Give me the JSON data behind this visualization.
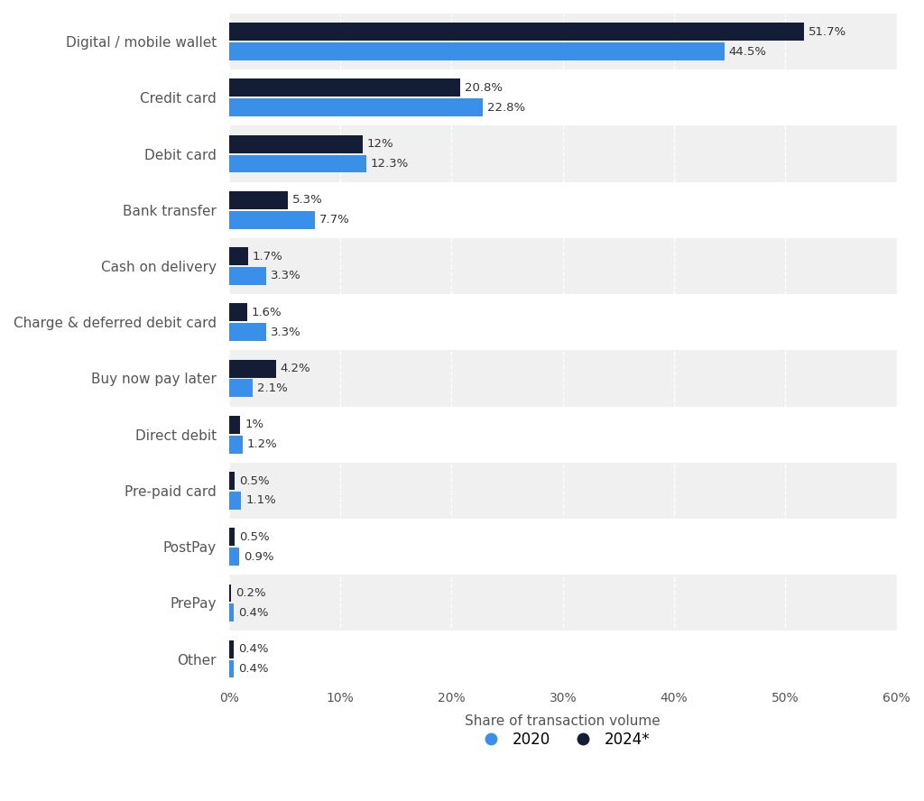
{
  "categories": [
    "Digital / mobile wallet",
    "Credit card",
    "Debit card",
    "Bank transfer",
    "Cash on delivery",
    "Charge & deferred debit card",
    "Buy now pay later",
    "Direct debit",
    "Pre-paid card",
    "PostPay",
    "PrePay",
    "Other"
  ],
  "values_2020": [
    44.5,
    22.8,
    12.3,
    7.7,
    3.3,
    3.3,
    2.1,
    1.2,
    1.1,
    0.9,
    0.4,
    0.4
  ],
  "values_2024": [
    51.7,
    20.8,
    12.0,
    5.3,
    1.7,
    1.6,
    4.2,
    1.0,
    0.5,
    0.5,
    0.2,
    0.4
  ],
  "labels_2020": [
    "44.5%",
    "22.8%",
    "12.3%",
    "7.7%",
    "3.3%",
    "3.3%",
    "2.1%",
    "1.2%",
    "1.1%",
    "0.9%",
    "0.4%",
    "0.4%"
  ],
  "labels_2024": [
    "51.7%",
    "20.8%",
    "12%",
    "5.3%",
    "1.7%",
    "1.6%",
    "4.2%",
    "1%",
    "0.5%",
    "0.5%",
    "0.2%",
    "0.4%"
  ],
  "color_2020": "#3a8fe8",
  "color_2024": "#131d36",
  "xlabel": "Share of transaction volume",
  "legend_2020": "2020",
  "legend_2024": "2024*",
  "xlim": [
    0,
    60
  ],
  "xticks": [
    0,
    10,
    20,
    30,
    40,
    50,
    60
  ],
  "xtick_labels": [
    "0%",
    "10%",
    "20%",
    "30%",
    "40%",
    "50%",
    "60%"
  ],
  "background_color": "#ffffff",
  "plot_background": "#ffffff",
  "row_alt_color": "#f0f0f0",
  "bar_height": 0.32,
  "bar_gap": 0.03,
  "label_fontsize": 9.5,
  "axis_label_fontsize": 11,
  "tick_label_fontsize": 10,
  "legend_fontsize": 12,
  "category_fontsize": 11
}
